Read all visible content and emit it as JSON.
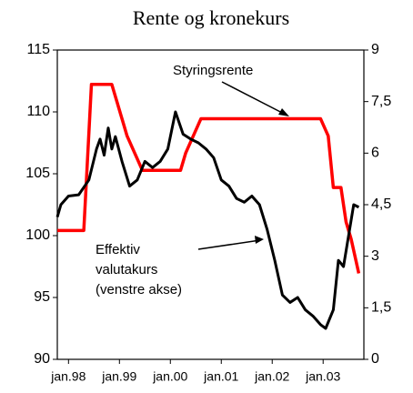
{
  "chart_data": {
    "type": "line",
    "title": "Rente og kronekurs",
    "xlim": [
      1997.78,
      2003.8
    ],
    "xticks": [
      {
        "value": 1998,
        "label": "jan.98"
      },
      {
        "value": 1999,
        "label": "jan.99"
      },
      {
        "value": 2000,
        "label": "jan.00"
      },
      {
        "value": 2001,
        "label": "jan.01"
      },
      {
        "value": 2002,
        "label": "jan.02"
      },
      {
        "value": 2003,
        "label": "jan.03"
      }
    ],
    "ylim": [
      90,
      115
    ],
    "yticks": [
      90,
      95,
      100,
      105,
      110,
      115
    ],
    "y2lim": [
      0,
      9
    ],
    "y2ticks": [
      0,
      {
        "value": 1.5,
        "label": "1,5"
      },
      3,
      {
        "value": 4.5,
        "label": "4,5"
      },
      6,
      {
        "value": 7.5,
        "label": "7,5"
      },
      9
    ],
    "series": [
      {
        "name": "Styringsrente",
        "color": "#ff0000",
        "axis": "y2",
        "x": [
          1997.78,
          1998.3,
          1998.45,
          1998.85,
          1998.95,
          1999.05,
          1999.15,
          1999.3,
          1999.45,
          2000.2,
          2000.3,
          2000.45,
          2000.6,
          2002.95,
          2003.1,
          2003.2,
          2003.35,
          2003.45,
          2003.55,
          2003.7
        ],
        "values": [
          3.75,
          3.75,
          8,
          8,
          7.5,
          7,
          6.5,
          6,
          5.5,
          5.5,
          6,
          6.5,
          7,
          7,
          6.5,
          5,
          5,
          4,
          3.5,
          2.5
        ]
      },
      {
        "name": "Effektiv valutakurs (venstre akse)",
        "color": "#000000",
        "x": [
          1997.78,
          1997.85,
          1998.0,
          1998.2,
          1998.4,
          1998.55,
          1998.62,
          1998.7,
          1998.78,
          1998.85,
          1998.92,
          1999.05,
          1999.2,
          1999.35,
          1999.5,
          1999.65,
          1999.8,
          1999.95,
          2000.1,
          2000.25,
          2000.4,
          2000.55,
          2000.7,
          2000.85,
          2001.0,
          2001.15,
          2001.3,
          2001.45,
          2001.6,
          2001.75,
          2001.9,
          2002.05,
          2002.2,
          2002.35,
          2002.5,
          2002.65,
          2002.8,
          2002.95,
          2003.05,
          2003.2,
          2003.3,
          2003.4,
          2003.5,
          2003.6,
          2003.7
        ],
        "values": [
          101.5,
          102.5,
          103.2,
          103.3,
          104.5,
          107,
          107.8,
          106.5,
          108.7,
          107,
          108,
          106,
          104,
          104.5,
          106,
          105.5,
          106,
          107,
          110,
          108.2,
          107.8,
          107.5,
          107,
          106.3,
          104.5,
          104,
          103,
          102.7,
          103.2,
          102.5,
          100.5,
          98,
          95.2,
          94.6,
          95,
          94,
          93.5,
          92.8,
          92.5,
          94,
          98,
          97.5,
          100,
          102.5,
          102.3
        ]
      }
    ],
    "annotations": [
      {
        "lines": [
          "Styringsrente"
        ]
      },
      {
        "lines": [
          "Effektiv",
          "valutakurs",
          "(venstre akse)"
        ]
      }
    ]
  }
}
